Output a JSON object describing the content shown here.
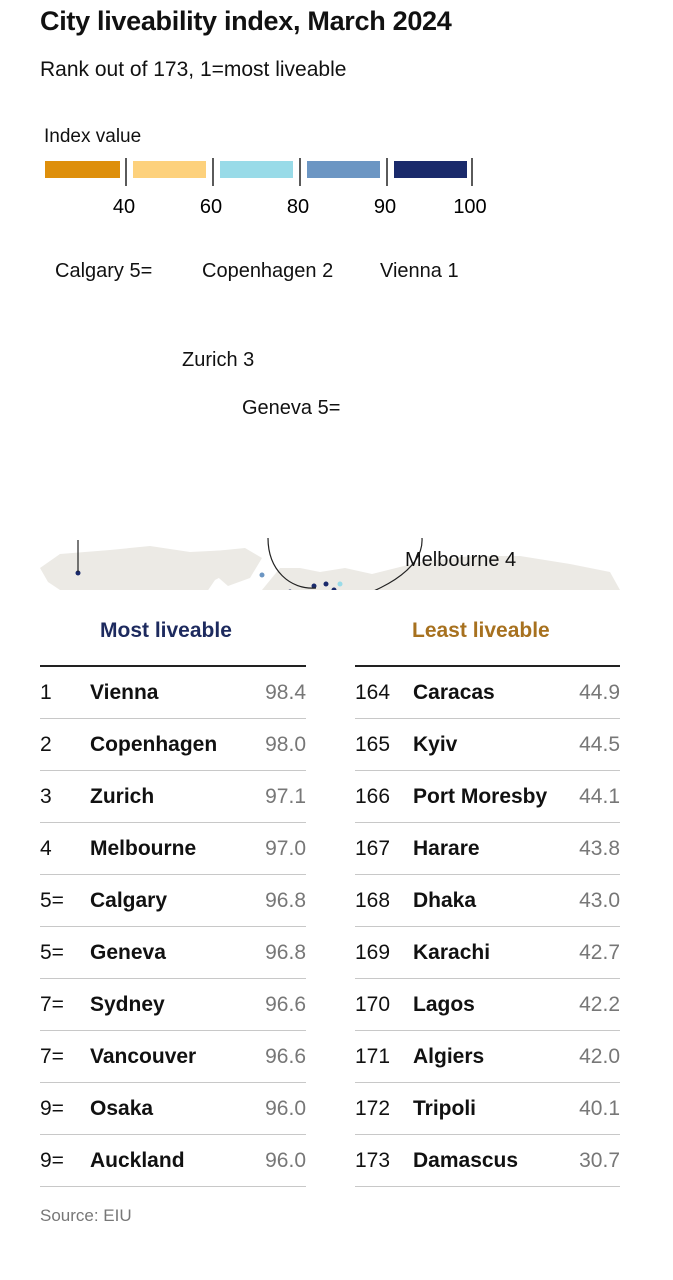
{
  "title": "City liveability index, March 2024",
  "subtitle": "Rank out of 173, 1=most liveable",
  "legend": {
    "title": "Index value",
    "bins": [
      {
        "color": "#de8f0b"
      },
      {
        "color": "#fdd17c"
      },
      {
        "color": "#99dbe8"
      },
      {
        "color": "#6c96c3"
      },
      {
        "color": "#1a2a6b"
      }
    ],
    "ticks": [
      "40",
      "60",
      "80",
      "90",
      "100"
    ]
  },
  "map_labels": {
    "calgary": "Calgary 5=",
    "copenhagen": "Copenhagen 2",
    "vienna": "Vienna 1",
    "zurich": "Zurich 3",
    "geneva": "Geneva 5=",
    "melbourne": "Melbourne 4"
  },
  "most_liveable": {
    "heading": "Most liveable",
    "rows": [
      {
        "rank": "1",
        "city": "Vienna",
        "value": "98.4"
      },
      {
        "rank": "2",
        "city": "Copenhagen",
        "value": "98.0"
      },
      {
        "rank": "3",
        "city": "Zurich",
        "value": "97.1"
      },
      {
        "rank": "4",
        "city": "Melbourne",
        "value": "97.0"
      },
      {
        "rank": "5=",
        "city": "Calgary",
        "value": "96.8"
      },
      {
        "rank": "5=",
        "city": "Geneva",
        "value": "96.8"
      },
      {
        "rank": "7=",
        "city": "Sydney",
        "value": "96.6"
      },
      {
        "rank": "7=",
        "city": "Vancouver",
        "value": "96.6"
      },
      {
        "rank": "9=",
        "city": "Osaka",
        "value": "96.0"
      },
      {
        "rank": "9=",
        "city": "Auckland",
        "value": "96.0"
      }
    ]
  },
  "least_liveable": {
    "heading": "Least liveable",
    "rows": [
      {
        "rank": "164",
        "city": "Caracas",
        "value": "44.9"
      },
      {
        "rank": "165",
        "city": "Kyiv",
        "value": "44.5"
      },
      {
        "rank": "166",
        "city": "Port Moresby",
        "value": "44.1"
      },
      {
        "rank": "167",
        "city": "Harare",
        "value": "43.8"
      },
      {
        "rank": "168",
        "city": "Dhaka",
        "value": "43.0"
      },
      {
        "rank": "169",
        "city": "Karachi",
        "value": "42.7"
      },
      {
        "rank": "170",
        "city": "Lagos",
        "value": "42.2"
      },
      {
        "rank": "171",
        "city": "Algiers",
        "value": "42.0"
      },
      {
        "rank": "172",
        "city": "Tripoli",
        "value": "40.1"
      },
      {
        "rank": "173",
        "city": "Damascus",
        "value": "30.7"
      }
    ]
  },
  "source": "Source: EIU",
  "chart_data": {
    "type": "table",
    "title": "City liveability index, March 2024",
    "subtitle": "Rank out of 173, 1=most liveable",
    "most_liveable": [
      {
        "rank": "1",
        "city": "Vienna",
        "value": 98.4
      },
      {
        "rank": "2",
        "city": "Copenhagen",
        "value": 98.0
      },
      {
        "rank": "3",
        "city": "Zurich",
        "value": 97.1
      },
      {
        "rank": "4",
        "city": "Melbourne",
        "value": 97.0
      },
      {
        "rank": "5=",
        "city": "Calgary",
        "value": 96.8
      },
      {
        "rank": "5=",
        "city": "Geneva",
        "value": 96.8
      },
      {
        "rank": "7=",
        "city": "Sydney",
        "value": 96.6
      },
      {
        "rank": "7=",
        "city": "Vancouver",
        "value": 96.6
      },
      {
        "rank": "9=",
        "city": "Osaka",
        "value": 96.0
      },
      {
        "rank": "9=",
        "city": "Auckland",
        "value": 96.0
      }
    ],
    "least_liveable": [
      {
        "rank": "164",
        "city": "Caracas",
        "value": 44.9
      },
      {
        "rank": "165",
        "city": "Kyiv",
        "value": 44.5
      },
      {
        "rank": "166",
        "city": "Port Moresby",
        "value": 44.1
      },
      {
        "rank": "167",
        "city": "Harare",
        "value": 43.8
      },
      {
        "rank": "168",
        "city": "Dhaka",
        "value": 43.0
      },
      {
        "rank": "169",
        "city": "Karachi",
        "value": 42.7
      },
      {
        "rank": "170",
        "city": "Lagos",
        "value": 42.2
      },
      {
        "rank": "171",
        "city": "Algiers",
        "value": 42.0
      },
      {
        "rank": "172",
        "city": "Tripoli",
        "value": 40.1
      },
      {
        "rank": "173",
        "city": "Damascus",
        "value": 30.7
      }
    ]
  }
}
